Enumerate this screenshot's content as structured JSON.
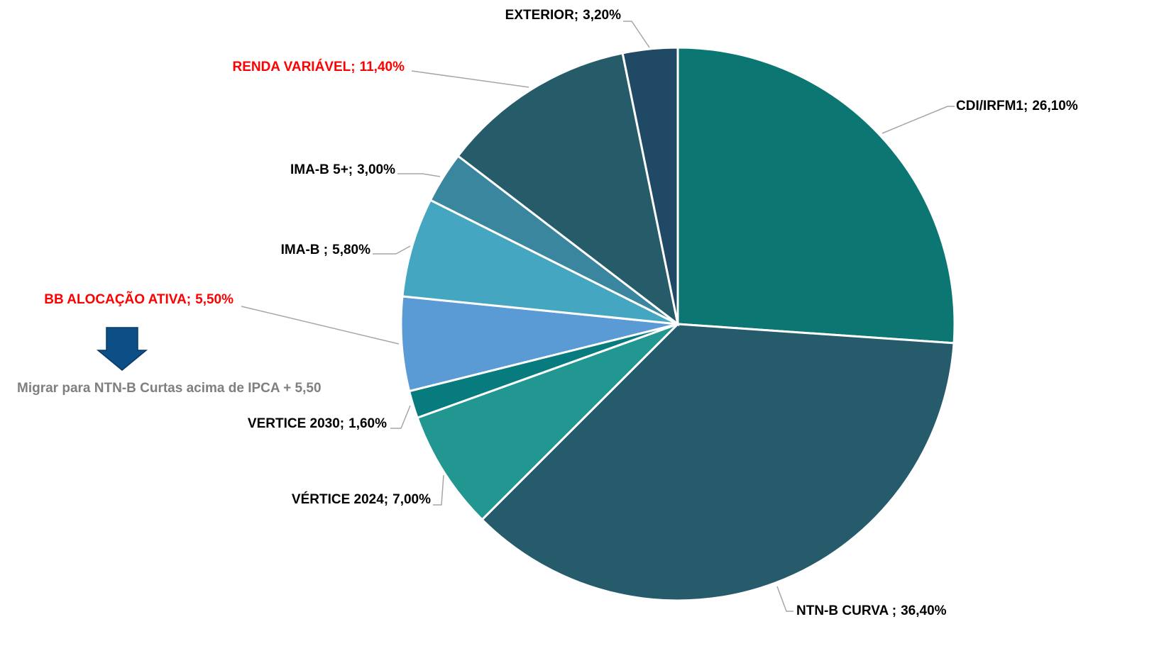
{
  "chart_data": {
    "type": "pie",
    "categories": [
      "CDI/IRFM1;",
      "NTN-B CURVA ;",
      "VÉRTICE 2024;",
      "VERTICE 2030;",
      "BB ALOCAÇÃO ATIVA;",
      "IMA-B ;",
      "IMA-B 5+;",
      "RENDA VARIÁVEL;",
      "EXTERIOR;"
    ],
    "values": [
      26.1,
      36.4,
      7.0,
      1.6,
      5.5,
      5.8,
      3.0,
      11.4,
      3.2
    ],
    "value_labels": [
      "26,10%",
      "36,40%",
      "7,00%",
      "1,60%",
      "5,50%",
      "5,80%",
      "3,00%",
      "11,40%",
      "3,20%"
    ],
    "colors": [
      "#0b7672",
      "#255b6a",
      "#229690",
      "#087b7f",
      "#5b9bd5",
      "#44a6c0",
      "#3a869e",
      "#265b6a",
      "#1f4965"
    ],
    "label_colors": [
      "#000000",
      "#000000",
      "#000000",
      "#000000",
      "#ff0000",
      "#000000",
      "#000000",
      "#ff0000",
      "#000000"
    ],
    "annotations": [
      {
        "text": "Migrar para NTN-B Curtas acima de IPCA + 5,50",
        "color": "#7f7f7f"
      }
    ]
  }
}
